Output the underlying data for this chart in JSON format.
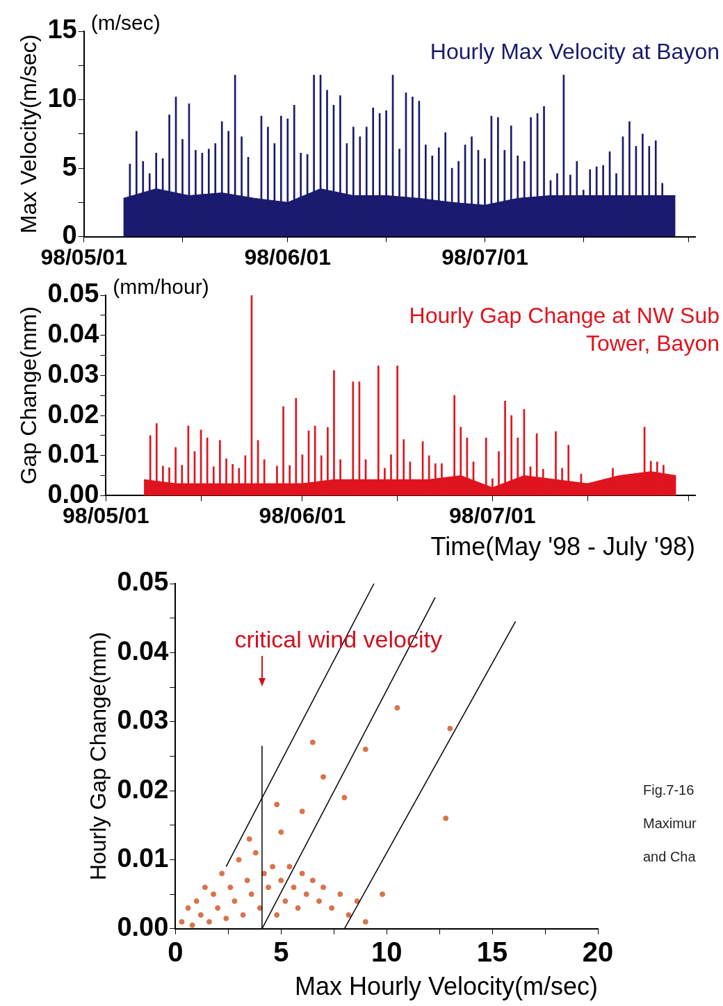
{
  "chart_data": [
    {
      "type": "bar",
      "title": "Hourly Max Velocity at Bayon",
      "ylabel": "Max Velocity(m/sec)",
      "annotations": [
        "(m/sec)"
      ],
      "xlim": [
        "1998-05-01",
        "1998-08-02"
      ],
      "xticks": [
        {
          "value": "1998-05-01",
          "label": "98/05/01"
        },
        {
          "value": "1998-05-16",
          "label": null
        },
        {
          "value": "1998-06-01",
          "label": "98/06/01"
        },
        {
          "value": "1998-06-16",
          "label": null
        },
        {
          "value": "1998-07-01",
          "label": "98/07/01"
        },
        {
          "value": "1998-07-16",
          "label": null
        },
        {
          "value": "1998-08-01",
          "label": null
        }
      ],
      "ylim": [
        0,
        15
      ],
      "yticks": [
        0,
        {
          "value": 2.5,
          "label": null
        },
        5,
        {
          "value": 7.5,
          "label": null
        },
        10,
        {
          "value": 12.5,
          "label": null
        },
        15
      ],
      "legend": false,
      "series": [
        {
          "type": "area",
          "color": "#1a1a6e",
          "x": [
            "1998-05-07",
            "1998-05-12",
            "1998-05-17",
            "1998-05-22",
            "1998-05-27",
            "1998-06-01",
            "1998-06-06",
            "1998-06-11",
            "1998-06-16",
            "1998-06-21",
            "1998-06-26",
            "1998-07-01",
            "1998-07-06",
            "1998-07-11",
            "1998-07-16",
            "1998-07-21",
            "1998-07-26",
            "1998-07-30"
          ],
          "values": [
            2.8,
            3.5,
            3,
            3.2,
            2.8,
            2.5,
            3.5,
            3,
            3,
            2.8,
            2.5,
            2.3,
            2.8,
            3,
            3,
            3,
            3,
            3
          ]
        },
        {
          "type": "bar",
          "color": "#1a1a6e",
          "x": [
            "1998-05-08",
            "1998-05-09",
            "1998-05-10",
            "1998-05-11",
            "1998-05-12",
            "1998-05-13",
            "1998-05-14",
            "1998-05-15",
            "1998-05-16",
            "1998-05-17",
            "1998-05-18",
            "1998-05-19",
            "1998-05-20",
            "1998-05-21",
            "1998-05-22",
            "1998-05-23",
            "1998-05-24",
            "1998-05-25",
            "1998-05-26",
            "1998-05-28",
            "1998-05-29",
            "1998-05-30",
            "1998-05-31",
            "1998-06-01",
            "1998-06-02",
            "1998-06-03",
            "1998-06-04",
            "1998-06-05",
            "1998-06-06",
            "1998-06-07",
            "1998-06-08",
            "1998-06-09",
            "1998-06-10",
            "1998-06-11",
            "1998-06-12",
            "1998-06-13",
            "1998-06-14",
            "1998-06-15",
            "1998-06-16",
            "1998-06-17",
            "1998-06-18",
            "1998-06-19",
            "1998-06-20",
            "1998-06-21",
            "1998-06-22",
            "1998-06-23",
            "1998-06-24",
            "1998-06-25",
            "1998-06-26",
            "1998-06-27",
            "1998-06-28",
            "1998-06-29",
            "1998-06-30",
            "1998-07-01",
            "1998-07-02",
            "1998-07-03",
            "1998-07-04",
            "1998-07-05",
            "1998-07-06",
            "1998-07-07",
            "1998-07-08",
            "1998-07-09",
            "1998-07-10",
            "1998-07-11",
            "1998-07-12",
            "1998-07-13",
            "1998-07-14",
            "1998-07-15",
            "1998-07-16",
            "1998-07-17",
            "1998-07-18",
            "1998-07-19",
            "1998-07-20",
            "1998-07-21",
            "1998-07-22",
            "1998-07-23",
            "1998-07-24",
            "1998-07-25",
            "1998-07-26",
            "1998-07-27",
            "1998-07-28"
          ],
          "values": [
            5.3,
            7.7,
            5.5,
            4.6,
            6.1,
            5.7,
            8.9,
            10.2,
            7.1,
            9.7,
            6.3,
            6.1,
            6.4,
            6.8,
            8.4,
            7.7,
            11.8,
            7.3,
            5.8,
            8.8,
            8,
            6.8,
            8.8,
            8.6,
            9.6,
            6.1,
            6,
            11.8,
            11.8,
            10.7,
            9.6,
            10.3,
            6.8,
            8,
            7.3,
            8,
            9.4,
            9,
            9.2,
            11.8,
            6.4,
            10.5,
            10.2,
            9.9,
            6.7,
            5.9,
            6.5,
            7.6,
            5,
            5.5,
            6.7,
            7.3,
            6.3,
            5.7,
            8.8,
            8.7,
            6.3,
            8.1,
            5.9,
            5.5,
            8.7,
            9,
            9.5,
            4.1,
            4.6,
            11.8,
            4.5,
            5.5,
            3.4,
            4.9,
            5.1,
            5.2,
            6.2,
            4.6,
            7.3,
            8.4,
            6.6,
            7.5,
            6.6,
            7,
            3.9
          ]
        }
      ]
    },
    {
      "type": "bar",
      "title": "Hourly Gap Change at NW Sub Tower, Bayon",
      "ylabel": "Gap Change(mm)",
      "xlabel": "Time(May '98 - July '98)",
      "annotations": [
        "(mm/hour)"
      ],
      "xlim": [
        "1998-05-01",
        "1998-08-02"
      ],
      "xticks": [
        {
          "value": "1998-05-01",
          "label": "98/05/01"
        },
        {
          "value": "1998-05-16",
          "label": null
        },
        {
          "value": "1998-06-01",
          "label": "98/06/01"
        },
        {
          "value": "1998-06-16",
          "label": null
        },
        {
          "value": "1998-07-01",
          "label": "98/07/01"
        },
        {
          "value": "1998-07-16",
          "label": null
        },
        {
          "value": "1998-08-01",
          "label": null
        }
      ],
      "ylim": [
        0,
        0.05
      ],
      "yticks": [
        {
          "value": 0,
          "label": "0.00"
        },
        {
          "value": 0.005,
          "label": null
        },
        0.01,
        {
          "value": 0.015,
          "label": null
        },
        0.02,
        {
          "value": 0.025,
          "label": null
        },
        0.03,
        {
          "value": 0.035,
          "label": null
        },
        0.04,
        {
          "value": 0.045,
          "label": null
        },
        0.05
      ],
      "legend": false,
      "series": [
        {
          "type": "area",
          "color": "#e0141e",
          "x": [
            "1998-05-07",
            "1998-05-12",
            "1998-05-17",
            "1998-05-22",
            "1998-05-27",
            "1998-06-01",
            "1998-06-06",
            "1998-06-11",
            "1998-06-16",
            "1998-06-21",
            "1998-06-26",
            "1998-07-01",
            "1998-07-06",
            "1998-07-11",
            "1998-07-16",
            "1998-07-21",
            "1998-07-26",
            "1998-07-30"
          ],
          "values": [
            0.004,
            0.003,
            0.003,
            0.003,
            0.003,
            0.003,
            0.004,
            0.004,
            0.004,
            0.004,
            0.005,
            0.002,
            0.005,
            0.004,
            0.003,
            0.005,
            0.006,
            0.005
          ]
        },
        {
          "type": "bar",
          "color": "#e0141e",
          "x": [
            "1998-05-08",
            "1998-05-09",
            "1998-05-10",
            "1998-05-11",
            "1998-05-12",
            "1998-05-13",
            "1998-05-14",
            "1998-05-15",
            "1998-05-16",
            "1998-05-17",
            "1998-05-18",
            "1998-05-19",
            "1998-05-20",
            "1998-05-21",
            "1998-05-22",
            "1998-05-23",
            "1998-05-24",
            "1998-05-25",
            "1998-05-26",
            "1998-05-28",
            "1998-05-29",
            "1998-05-30",
            "1998-05-31",
            "1998-06-01",
            "1998-06-02",
            "1998-06-03",
            "1998-06-04",
            "1998-06-05",
            "1998-06-06",
            "1998-06-07",
            "1998-06-09",
            "1998-06-10",
            "1998-06-11",
            "1998-06-13",
            "1998-06-14",
            "1998-06-15",
            "1998-06-16",
            "1998-06-17",
            "1998-06-18",
            "1998-06-20",
            "1998-06-21",
            "1998-06-22",
            "1998-06-23",
            "1998-06-25",
            "1998-06-26",
            "1998-06-27",
            "1998-06-28",
            "1998-06-30",
            "1998-07-01",
            "1998-07-02",
            "1998-07-03",
            "1998-07-04",
            "1998-07-05",
            "1998-07-06",
            "1998-07-07",
            "1998-07-08",
            "1998-07-09",
            "1998-07-11",
            "1998-07-12",
            "1998-07-13",
            "1998-07-15",
            "1998-07-20",
            "1998-07-25",
            "1998-07-26",
            "1998-07-27",
            "1998-07-28"
          ],
          "values": [
            0.015,
            0.018,
            0.0074,
            0.007,
            0.012,
            0.0076,
            0.0174,
            0.011,
            0.0164,
            0.0144,
            0.0072,
            0.0138,
            0.0092,
            0.0078,
            0.0068,
            0.01,
            0.05,
            0.0138,
            0.009,
            0.0074,
            0.0222,
            0.0075,
            0.0243,
            0.0102,
            0.0162,
            0.0174,
            0.01,
            0.017,
            0.0312,
            0.009,
            0.0284,
            0.0284,
            0.009,
            0.0324,
            0.0068,
            0.0102,
            0.0324,
            0.014,
            0.0084,
            0.0135,
            0.01,
            0.008,
            0.008,
            0.025,
            0.0171,
            0.0144,
            0.0084,
            0.0144,
            0.0042,
            0.011,
            0.0236,
            0.02,
            0.0144,
            0.0215,
            0.0072,
            0.0155,
            0.0066,
            0.016,
            0.0068,
            0.0126,
            0.0054,
            0.0068,
            0.0171,
            0.0086,
            0.0084,
            0.0076
          ]
        }
      ]
    },
    {
      "type": "scatter",
      "xlabel": "Max Hourly Velocity(m/sec)",
      "ylabel": "Hourly Gap Change(mm)",
      "annotations": [
        "critical wind velocity",
        "Fig.7-16",
        "Maximur",
        "and Cha"
      ],
      "xlim": [
        0,
        20
      ],
      "xticks": [
        0,
        {
          "value": 2.5,
          "label": null
        },
        5,
        {
          "value": 7.5,
          "label": null
        },
        10,
        {
          "value": 12.5,
          "label": null
        },
        15,
        {
          "value": 17.5,
          "label": null
        },
        20
      ],
      "ylim": [
        0,
        0.05
      ],
      "yticks": [
        {
          "value": 0,
          "label": "0.00"
        },
        {
          "value": 0.005,
          "label": null
        },
        0.01,
        {
          "value": 0.015,
          "label": null
        },
        0.02,
        {
          "value": 0.025,
          "label": null
        },
        0.03,
        {
          "value": 0.035,
          "label": null
        },
        0.04,
        {
          "value": 0.045,
          "label": null
        },
        0.05
      ],
      "legend": false,
      "series": [
        {
          "type": "scatter",
          "marker": "circle",
          "color": "#d9734a",
          "x": [
            0.3,
            0.6,
            0.8,
            1,
            1.2,
            1.4,
            1.6,
            1.8,
            2,
            2.2,
            2.4,
            2.6,
            2.8,
            3,
            3.2,
            3.4,
            3.6,
            3.8,
            4,
            4.2,
            4.4,
            4.6,
            4.8,
            5,
            5.2,
            5.4,
            5.6,
            5.8,
            6,
            6.2,
            6.5,
            6.8,
            7,
            7.4,
            7.8,
            8.2,
            8.6,
            9,
            9.8,
            5,
            6,
            7,
            8,
            4.8,
            9,
            10.5,
            13,
            12.8,
            3.5,
            6.5
          ],
          "values": [
            0.001,
            0.003,
            0.0005,
            0.004,
            0.002,
            0.006,
            0.001,
            0.005,
            0.003,
            0.008,
            0.0015,
            0.006,
            0.004,
            0.01,
            0.002,
            0.007,
            0.005,
            0.011,
            0.003,
            0.008,
            0.006,
            0.009,
            0.002,
            0.007,
            0.004,
            0.009,
            0.006,
            0.003,
            0.008,
            0.005,
            0.007,
            0.004,
            0.006,
            0.003,
            0.005,
            0.002,
            0.004,
            0.001,
            0.005,
            0.014,
            0.017,
            0.022,
            0.019,
            0.018,
            0.026,
            0.032,
            0.029,
            0.016,
            0.013,
            0.027
          ]
        },
        {
          "type": "line",
          "color": "#000000",
          "x": [
            2.4,
            9.4
          ],
          "values": [
            0.009,
            0.05
          ]
        },
        {
          "type": "line",
          "color": "#000000",
          "x": [
            4.1,
            12.3
          ],
          "values": [
            0,
            0.048
          ]
        },
        {
          "type": "line",
          "color": "#000000",
          "x": [
            8,
            16.1
          ],
          "values": [
            0,
            0.0445
          ]
        },
        {
          "type": "line",
          "color": "#000000",
          "x": [
            4.1,
            4.1
          ],
          "values": [
            0,
            0.0265
          ]
        }
      ]
    }
  ]
}
